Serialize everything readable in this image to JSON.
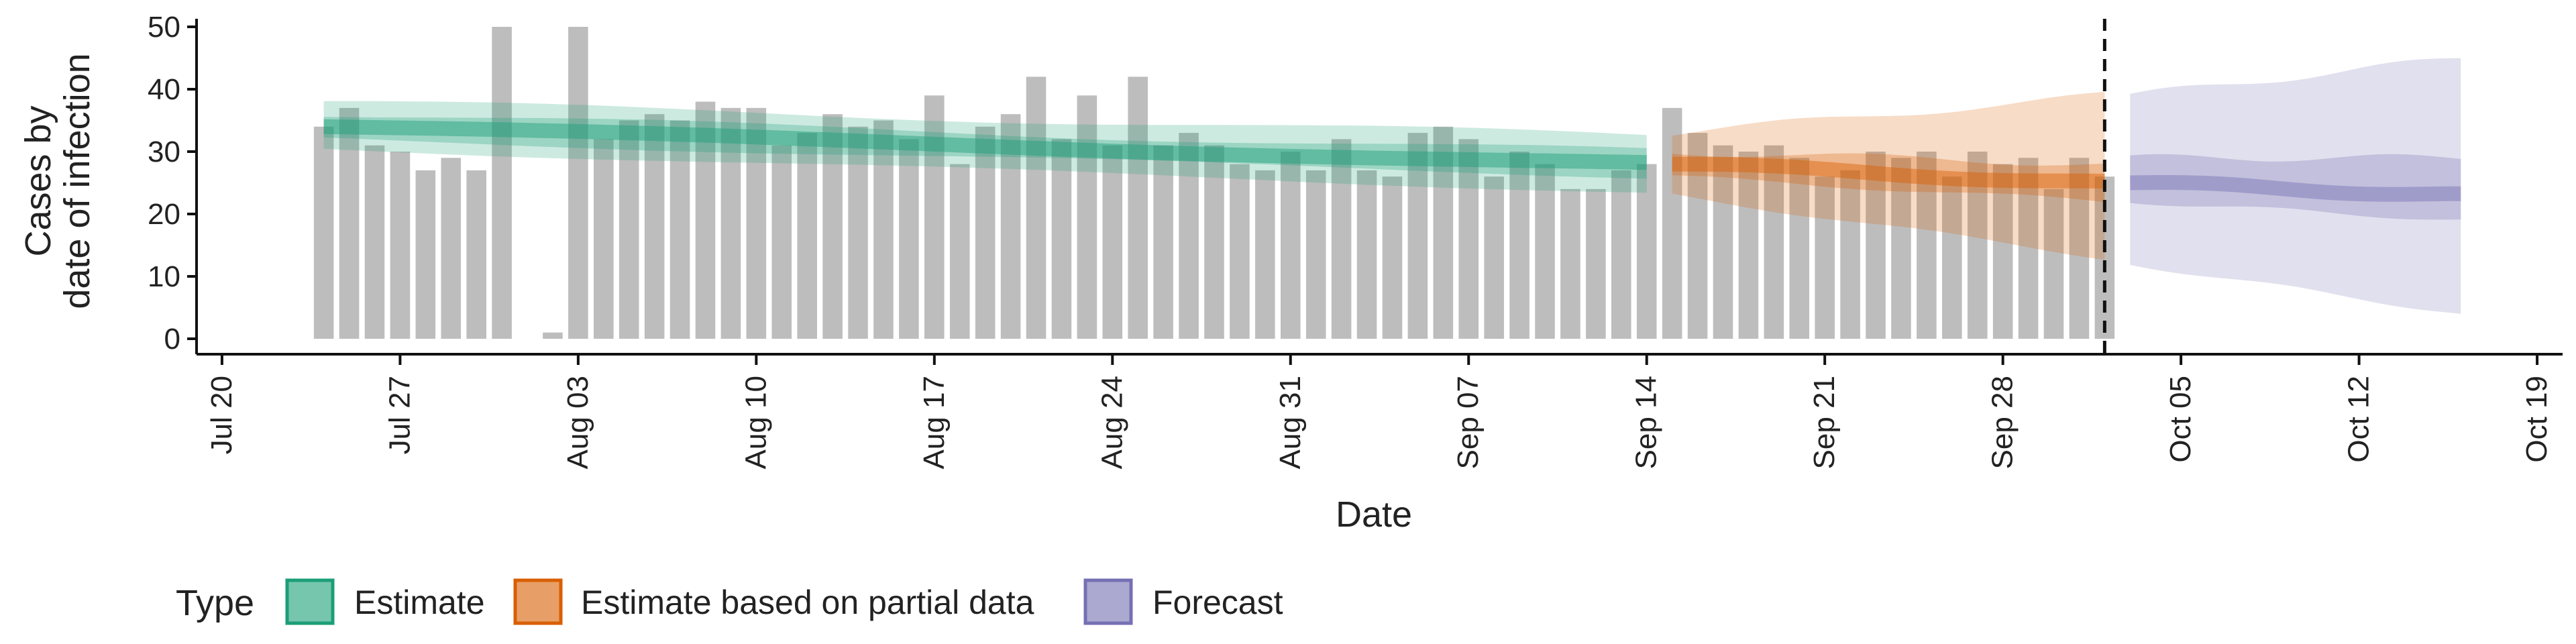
{
  "chart_data": {
    "type": "bar",
    "xlabel": "Date",
    "ylabel_lines": [
      "Cases by",
      "date of infection"
    ],
    "ylim": [
      0,
      52
    ],
    "yticks": [
      0,
      10,
      20,
      30,
      40,
      50
    ],
    "xlim": [
      "2020-07-19",
      "2020-10-20"
    ],
    "xticks": [
      {
        "date": "2020-07-20",
        "label": "Jul 20"
      },
      {
        "date": "2020-07-27",
        "label": "Jul 27"
      },
      {
        "date": "2020-08-03",
        "label": "Aug 03"
      },
      {
        "date": "2020-08-10",
        "label": "Aug 10"
      },
      {
        "date": "2020-08-17",
        "label": "Aug 17"
      },
      {
        "date": "2020-08-24",
        "label": "Aug 24"
      },
      {
        "date": "2020-08-31",
        "label": "Aug 31"
      },
      {
        "date": "2020-09-07",
        "label": "Sep 07"
      },
      {
        "date": "2020-09-14",
        "label": "Sep 14"
      },
      {
        "date": "2020-09-21",
        "label": "Sep 21"
      },
      {
        "date": "2020-09-28",
        "label": "Sep 28"
      },
      {
        "date": "2020-10-05",
        "label": "Oct 05"
      },
      {
        "date": "2020-10-12",
        "label": "Oct 12"
      },
      {
        "date": "2020-10-19",
        "label": "Oct 19"
      }
    ],
    "bars": {
      "start": "2020-07-24",
      "end": "2020-10-02",
      "color": "#bdbdbd",
      "values": [
        34,
        37,
        31,
        30,
        27,
        29,
        27,
        50,
        null,
        1,
        50,
        32,
        35,
        36,
        35,
        38,
        37,
        37,
        31,
        33,
        36,
        34,
        35,
        32,
        39,
        28,
        34,
        36,
        42,
        32,
        39,
        31,
        42,
        31,
        33,
        31,
        28,
        27,
        30,
        27,
        32,
        27,
        26,
        33,
        34,
        32,
        26,
        30,
        28,
        24,
        24,
        27,
        28,
        37,
        33,
        31,
        30,
        31,
        29,
        26,
        27,
        30,
        29,
        30,
        26,
        30,
        28,
        29,
        24,
        29,
        26
      ]
    },
    "vline_date": "2020-10-02",
    "series": [
      {
        "name": "Estimate",
        "color": "#1b9e77",
        "start": "2020-07-24",
        "end": "2020-09-14",
        "median": [
          34,
          28
        ],
        "ci50": [
          [
            32,
            36
          ],
          [
            26,
            30
          ]
        ],
        "ci90": [
          [
            30.5,
            38
          ],
          [
            23.5,
            32.5
          ]
        ]
      },
      {
        "name": "Estimate based on partial data",
        "color": "#d95f02",
        "start": "2020-09-15",
        "end": "2020-10-02",
        "median": [
          28,
          25
        ],
        "ci50": [
          [
            26,
            30
          ],
          [
            22,
            28
          ]
        ],
        "ci90": [
          [
            23,
            33
          ],
          [
            13,
            39
          ]
        ]
      },
      {
        "name": "Forecast",
        "color": "#7570b3",
        "start": "2020-10-03",
        "end": "2020-10-16",
        "median": [
          25,
          23
        ],
        "ci50": [
          [
            22,
            29
          ],
          [
            19,
            29
          ]
        ],
        "ci90": [
          [
            12,
            39
          ],
          [
            4,
            45
          ]
        ]
      }
    ],
    "legend": {
      "title": "Type",
      "position": "bottom",
      "items": [
        "Estimate",
        "Estimate based on partial data",
        "Forecast"
      ]
    }
  }
}
